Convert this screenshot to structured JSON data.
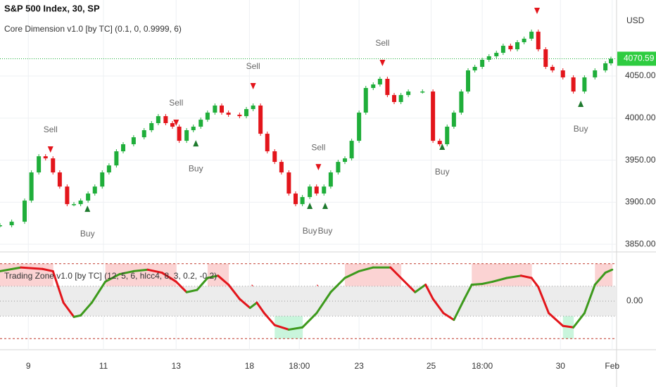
{
  "chart_data": [
    {
      "type": "candlestick",
      "title": "S&P 500 Index, 30, SP",
      "subtitle": "Core Dimension v1.0 [by TC] (0.1, 0, 0.9999, 6)",
      "currency": "USD",
      "up_color": "#1fae3a",
      "down_color": "#e3151b",
      "x": [
        0,
        1.9,
        4,
        5.1,
        6.3,
        7.4,
        8.6,
        9.7,
        10.9,
        12,
        13.1,
        14.3,
        15.4,
        16.6,
        17.7,
        18.9,
        20,
        21.7,
        23.4,
        24.6,
        25.7,
        26.9,
        28,
        29.1,
        30.3,
        31.4,
        32.6,
        33.7,
        34.9,
        36,
        37.1,
        38.9,
        40,
        41.1,
        42.3,
        43.4,
        44.6,
        45.7,
        46.9,
        48,
        49.1,
        50.3,
        51.4,
        52.6,
        53.7,
        54.9,
        56,
        57.1,
        58.3,
        59.4,
        60.6,
        61.7,
        62.9,
        64,
        65.1,
        66.3,
        68.6,
        70.3,
        71.4,
        72.6,
        73.7,
        74.9,
        76,
        77.1,
        78.3,
        79.4,
        80.6,
        81.7,
        82.9,
        84,
        85.1,
        86.3,
        87.4,
        88.6,
        89.7,
        91.4,
        93.1,
        94.9,
        96.6,
        98.3,
        99.2
      ],
      "values": [
        3872.6,
        3876.8,
        3901.9,
        3935.4,
        3954.6,
        3952.1,
        3935.4,
        3918.6,
        3897.7,
        3897.7,
        3901.9,
        3910.3,
        3918.6,
        3935.4,
        3943.7,
        3960.5,
        3968.9,
        3977.2,
        3985.6,
        3994,
        4002.3,
        3994,
        3989.8,
        3973,
        3985.6,
        3989.8,
        3998.1,
        4006.5,
        4014.9,
        4006.5,
        4004,
        4002.3,
        4010.7,
        4014.9,
        3981.4,
        3960.5,
        3947.9,
        3935.4,
        3910.3,
        3897.7,
        3906.1,
        3918.6,
        3910.3,
        3918.6,
        3935.4,
        3947.9,
        3952.1,
        3973,
        4006.5,
        4035.8,
        4040,
        4046.7,
        4027.4,
        4019.1,
        4027.4,
        4031.6,
        4031.6,
        3973,
        3968.9,
        3989.8,
        4006.5,
        4031.6,
        4056.7,
        4060.9,
        4069.3,
        4073.5,
        4077.6,
        4086,
        4081.8,
        4090.2,
        4094.4,
        4102.7,
        4081.8,
        4060.9,
        4056.7,
        4048.4,
        4031.6,
        4048.4,
        4056.7,
        4065.1,
        4070.59
      ],
      "last_price": 4070.59,
      "signals": [
        {
          "label": "Sell",
          "x": 8.2,
          "value": 3962.2
        },
        {
          "label": "Buy",
          "x": 14.2,
          "value": 3892.7
        },
        {
          "label": "Sell",
          "x": 28.6,
          "value": 3994
        },
        {
          "label": "Buy",
          "x": 31.8,
          "value": 3970.5
        },
        {
          "label": "Sell",
          "x": 41.1,
          "value": 4037.5
        },
        {
          "label": "Buy",
          "x": 50.3,
          "value": 3896.1
        },
        {
          "label": "Sell",
          "x": 51.7,
          "value": 3941.2
        },
        {
          "label": "Buy",
          "x": 52.8,
          "value": 3896.1
        },
        {
          "label": "Sell",
          "x": 62.1,
          "value": 4065.1
        },
        {
          "label": "Buy",
          "x": 71.8,
          "value": 3966.4
        },
        {
          "label": "Sell",
          "x": 87.2,
          "value": 4127
        },
        {
          "label": "Buy",
          "x": 94.3,
          "value": 4017.4
        }
      ],
      "xlim": [
        0,
        100
      ],
      "ylim": [
        3843.4,
        4140.4
      ],
      "yticks": [
        {
          "value": 3850,
          "label": "3850.00"
        },
        {
          "value": 3900,
          "label": "3900.00"
        },
        {
          "value": 3950,
          "label": "3950.00"
        },
        {
          "value": 4000,
          "label": "4000.00"
        },
        {
          "value": 4050,
          "label": "4050.00"
        }
      ],
      "grid": true
    },
    {
      "type": "line",
      "title": "Trading Zone v1.0 [by TC] (12, 5, 6, hlcc4, 8, 3, 0.2, -0.2)",
      "up_color": "#3d9a1c",
      "down_color": "#e3151b",
      "x": [
        0,
        3.4,
        6.9,
        8.6,
        10.3,
        12,
        13.1,
        14.9,
        17.1,
        19.4,
        21.7,
        24,
        26.3,
        28.6,
        30.3,
        32,
        33.7,
        35.4,
        37.1,
        38.9,
        40.6,
        41.7,
        42.9,
        44.6,
        46.9,
        49.1,
        51.4,
        53.7,
        56,
        58.3,
        60.6,
        63.4,
        65.1,
        67.4,
        69.1,
        70.3,
        72,
        73.7,
        75.4,
        76.6,
        78.3,
        80,
        82.3,
        84.6,
        86.3,
        87.4,
        89.1,
        91.4,
        93.1,
        94.9,
        96.6,
        98.3,
        99.4
      ],
      "values": [
        0.4,
        0.45,
        0.43,
        0.4,
        -0.02,
        -0.21,
        -0.19,
        -0.02,
        0.26,
        0.36,
        0.4,
        0.42,
        0.38,
        0.26,
        0.12,
        0.15,
        0.31,
        0.34,
        0.22,
        0.03,
        -0.09,
        -0.02,
        -0.16,
        -0.32,
        -0.38,
        -0.35,
        -0.16,
        0.12,
        0.31,
        0.4,
        0.45,
        0.45,
        0.31,
        0.12,
        0.22,
        0.03,
        -0.16,
        -0.25,
        0.03,
        0.22,
        0.23,
        0.26,
        0.31,
        0.34,
        0.31,
        0.19,
        -0.16,
        -0.33,
        -0.35,
        -0.16,
        0.22,
        0.38,
        0.42
      ],
      "levels": [
        0.5,
        0.2,
        0,
        -0.2,
        -0.5
      ],
      "xlim": [
        0,
        100
      ],
      "ylim": [
        -0.62,
        0.62
      ],
      "yticks": [
        {
          "value": 0,
          "label": "0.00"
        }
      ],
      "xticks": [
        {
          "value": 4.6,
          "label": "9"
        },
        {
          "value": 16.8,
          "label": "11"
        },
        {
          "value": 28.6,
          "label": "13"
        },
        {
          "value": 40.5,
          "label": "18"
        },
        {
          "value": 48.6,
          "label": "18:00"
        },
        {
          "value": 58.3,
          "label": "23"
        },
        {
          "value": 70,
          "label": "25"
        },
        {
          "value": 78.3,
          "label": "18:00"
        },
        {
          "value": 91,
          "label": "30"
        },
        {
          "value": 99.4,
          "label": "Feb"
        }
      ]
    }
  ]
}
